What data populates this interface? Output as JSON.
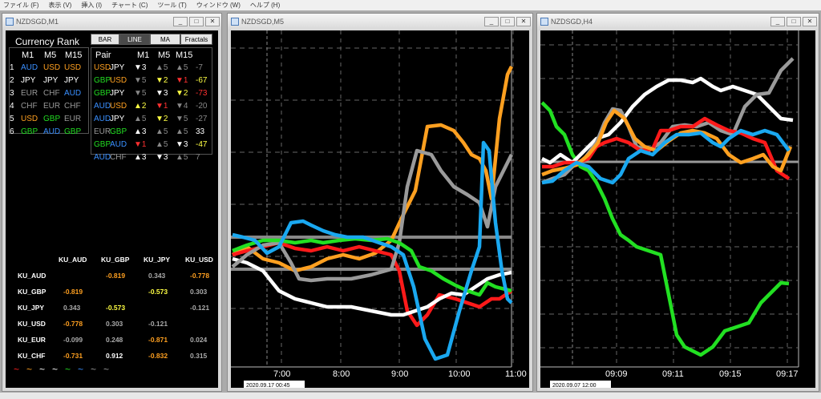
{
  "menu": [
    "ファイル (F)",
    "表示 (V)",
    "挿入 (I)",
    "チャート (C)",
    "ツール (T)",
    "ウィンドウ (W)",
    "ヘルプ (H)"
  ],
  "windows": [
    {
      "title": "NZDSGD,M1"
    },
    {
      "title": "NZDSGD,M5"
    },
    {
      "title": "NZDSGD,H4"
    }
  ],
  "panel": {
    "title": "Currency Rank",
    "buttons": [
      "BAR",
      "LINE",
      "MA",
      "Fractals"
    ],
    "rank_headers": [
      "M1",
      "M5",
      "M15"
    ],
    "ranks": [
      {
        "n": "1",
        "c": [
          {
            "t": "AUD",
            "col": "#3a8fff"
          },
          {
            "t": "USD",
            "col": "#ffa020"
          },
          {
            "t": "USD",
            "col": "#ffa020"
          }
        ]
      },
      {
        "n": "2",
        "c": [
          {
            "t": "JPY",
            "col": "#ffffff"
          },
          {
            "t": "JPY",
            "col": "#ffffff"
          },
          {
            "t": "JPY",
            "col": "#ffffff"
          }
        ]
      },
      {
        "n": "3",
        "c": [
          {
            "t": "EUR",
            "col": "#999999"
          },
          {
            "t": "CHF",
            "col": "#999999"
          },
          {
            "t": "AUD",
            "col": "#3a8fff"
          }
        ]
      },
      {
        "n": "4",
        "c": [
          {
            "t": "CHF",
            "col": "#999999"
          },
          {
            "t": "EUR",
            "col": "#999999"
          },
          {
            "t": "CHF",
            "col": "#999999"
          }
        ]
      },
      {
        "n": "5",
        "c": [
          {
            "t": "USD",
            "col": "#ffa020"
          },
          {
            "t": "GBP",
            "col": "#22dd22"
          },
          {
            "t": "EUR",
            "col": "#999999"
          }
        ]
      },
      {
        "n": "6",
        "c": [
          {
            "t": "GBP",
            "col": "#22dd22"
          },
          {
            "t": "AUD",
            "col": "#3a8fff"
          },
          {
            "t": "GBP",
            "col": "#22dd22"
          }
        ]
      }
    ],
    "pair_headers": [
      "Pair",
      "M1",
      "M5",
      "M15"
    ],
    "pairs": [
      {
        "a": "USD",
        "ac": "#ffa020",
        "b": "JPY",
        "bc": "#ffffff",
        "m1": "▼3",
        "m1c": "#ffffff",
        "m5": "▲5",
        "m5c": "#888888",
        "m15": "▲5",
        "m15c": "#888888",
        "v": "-7",
        "vc": "#888888"
      },
      {
        "a": "GBP",
        "ac": "#22dd22",
        "b": "USD",
        "bc": "#ffa020",
        "m1": "▼5",
        "m1c": "#888888",
        "m5": "▼2",
        "m5c": "#ffff44",
        "m15": "▼1",
        "m15c": "#ff3030",
        "v": "-67",
        "vc": "#ffff44"
      },
      {
        "a": "GBP",
        "ac": "#22dd22",
        "b": "JPY",
        "bc": "#ffffff",
        "m1": "▼5",
        "m1c": "#888888",
        "m5": "▼3",
        "m5c": "#ffffff",
        "m15": "▼2",
        "m15c": "#ffff44",
        "v": "-73",
        "vc": "#ff3030"
      },
      {
        "a": "AUD",
        "ac": "#3a8fff",
        "b": "USD",
        "bc": "#ffa020",
        "m1": "▲2",
        "m1c": "#ffff44",
        "m5": "▼1",
        "m5c": "#ff3030",
        "m15": "▼4",
        "m15c": "#888888",
        "v": "-20",
        "vc": "#888888"
      },
      {
        "a": "AUD",
        "ac": "#3a8fff",
        "b": "JPY",
        "bc": "#ffffff",
        "m1": "▲5",
        "m1c": "#888888",
        "m5": "▼2",
        "m5c": "#ffff44",
        "m15": "▼5",
        "m15c": "#888888",
        "v": "-27",
        "vc": "#888888"
      },
      {
        "a": "EUR",
        "ac": "#999999",
        "b": "GBP",
        "bc": "#22dd22",
        "m1": "▲3",
        "m1c": "#ffffff",
        "m5": "▲5",
        "m5c": "#888888",
        "m15": "▲5",
        "m15c": "#888888",
        "v": "33",
        "vc": "#ffffff"
      },
      {
        "a": "GBP",
        "ac": "#22dd22",
        "b": "AUD",
        "bc": "#3a8fff",
        "m1": "▼1",
        "m1c": "#ff3030",
        "m5": "▲5",
        "m5c": "#888888",
        "m15": "▼3",
        "m15c": "#ffffff",
        "v": "-47",
        "vc": "#ffff44"
      },
      {
        "a": "AUD",
        "ac": "#3a8fff",
        "b": "CHF",
        "bc": "#999999",
        "m1": "▲3",
        "m1c": "#ffffff",
        "m5": "▼3",
        "m5c": "#ffffff",
        "m15": "▲5",
        "m15c": "#888888",
        "v": "7",
        "vc": "#888888"
      }
    ],
    "corr_headers": [
      "KU_AUD",
      "KU_GBP",
      "KU_JPY",
      "KU_USD"
    ],
    "corr_rows": [
      {
        "label": "KU_AUD",
        "v": [
          {
            "t": "",
            "c": "#fff"
          },
          {
            "t": "-0.819",
            "c": "#ffa020"
          },
          {
            "t": "0.343",
            "c": "#aaaaaa"
          },
          {
            "t": "-0.778",
            "c": "#ffa020"
          }
        ]
      },
      {
        "label": "KU_GBP",
        "v": [
          {
            "t": "-0.819",
            "c": "#ffa020"
          },
          {
            "t": "",
            "c": "#fff"
          },
          {
            "t": "-0.573",
            "c": "#ffff44"
          },
          {
            "t": "0.303",
            "c": "#aaaaaa"
          }
        ]
      },
      {
        "label": "KU_JPY",
        "v": [
          {
            "t": "0.343",
            "c": "#aaaaaa"
          },
          {
            "t": "-0.573",
            "c": "#ffff44"
          },
          {
            "t": "",
            "c": "#fff"
          },
          {
            "t": "-0.121",
            "c": "#aaaaaa"
          }
        ]
      },
      {
        "label": "KU_USD",
        "v": [
          {
            "t": "-0.778",
            "c": "#ffa020"
          },
          {
            "t": "0.303",
            "c": "#aaaaaa"
          },
          {
            "t": "-0.121",
            "c": "#aaaaaa"
          },
          {
            "t": "",
            "c": "#fff"
          }
        ]
      },
      {
        "label": "KU_EUR",
        "v": [
          {
            "t": "-0.099",
            "c": "#aaaaaa"
          },
          {
            "t": "0.248",
            "c": "#aaaaaa"
          },
          {
            "t": "-0.871",
            "c": "#ffa020"
          },
          {
            "t": "0.024",
            "c": "#aaaaaa"
          }
        ]
      },
      {
        "label": "KU_CHF",
        "v": [
          {
            "t": "-0.731",
            "c": "#ffa020"
          },
          {
            "t": "0.912",
            "c": "#ffffff"
          },
          {
            "t": "-0.832",
            "c": "#ffa020"
          },
          {
            "t": "0.315",
            "c": "#aaaaaa"
          }
        ]
      }
    ],
    "legend_colors": [
      "#ff2020",
      "#ffa020",
      "#ffffff",
      "#ffffff",
      "#22dd22",
      "#3a8fff",
      "#999999",
      "#999999"
    ]
  },
  "m5_chart": {
    "x_labels": [
      "7:00",
      "8:00",
      "9:00",
      "10:00",
      "11:00"
    ],
    "date_label": "2020.09.17 00:45"
  },
  "h4_chart": {
    "x_labels": [
      "09:09",
      "09:11",
      "09:15",
      "09:17"
    ],
    "date_label": "2020.09.07 12:00"
  },
  "colors": {
    "red": "#ff1a1a",
    "orange": "#ffa020",
    "white": "#ffffff",
    "gray": "#9a9a9a",
    "green": "#22e022",
    "blue": "#1aa8f0"
  }
}
